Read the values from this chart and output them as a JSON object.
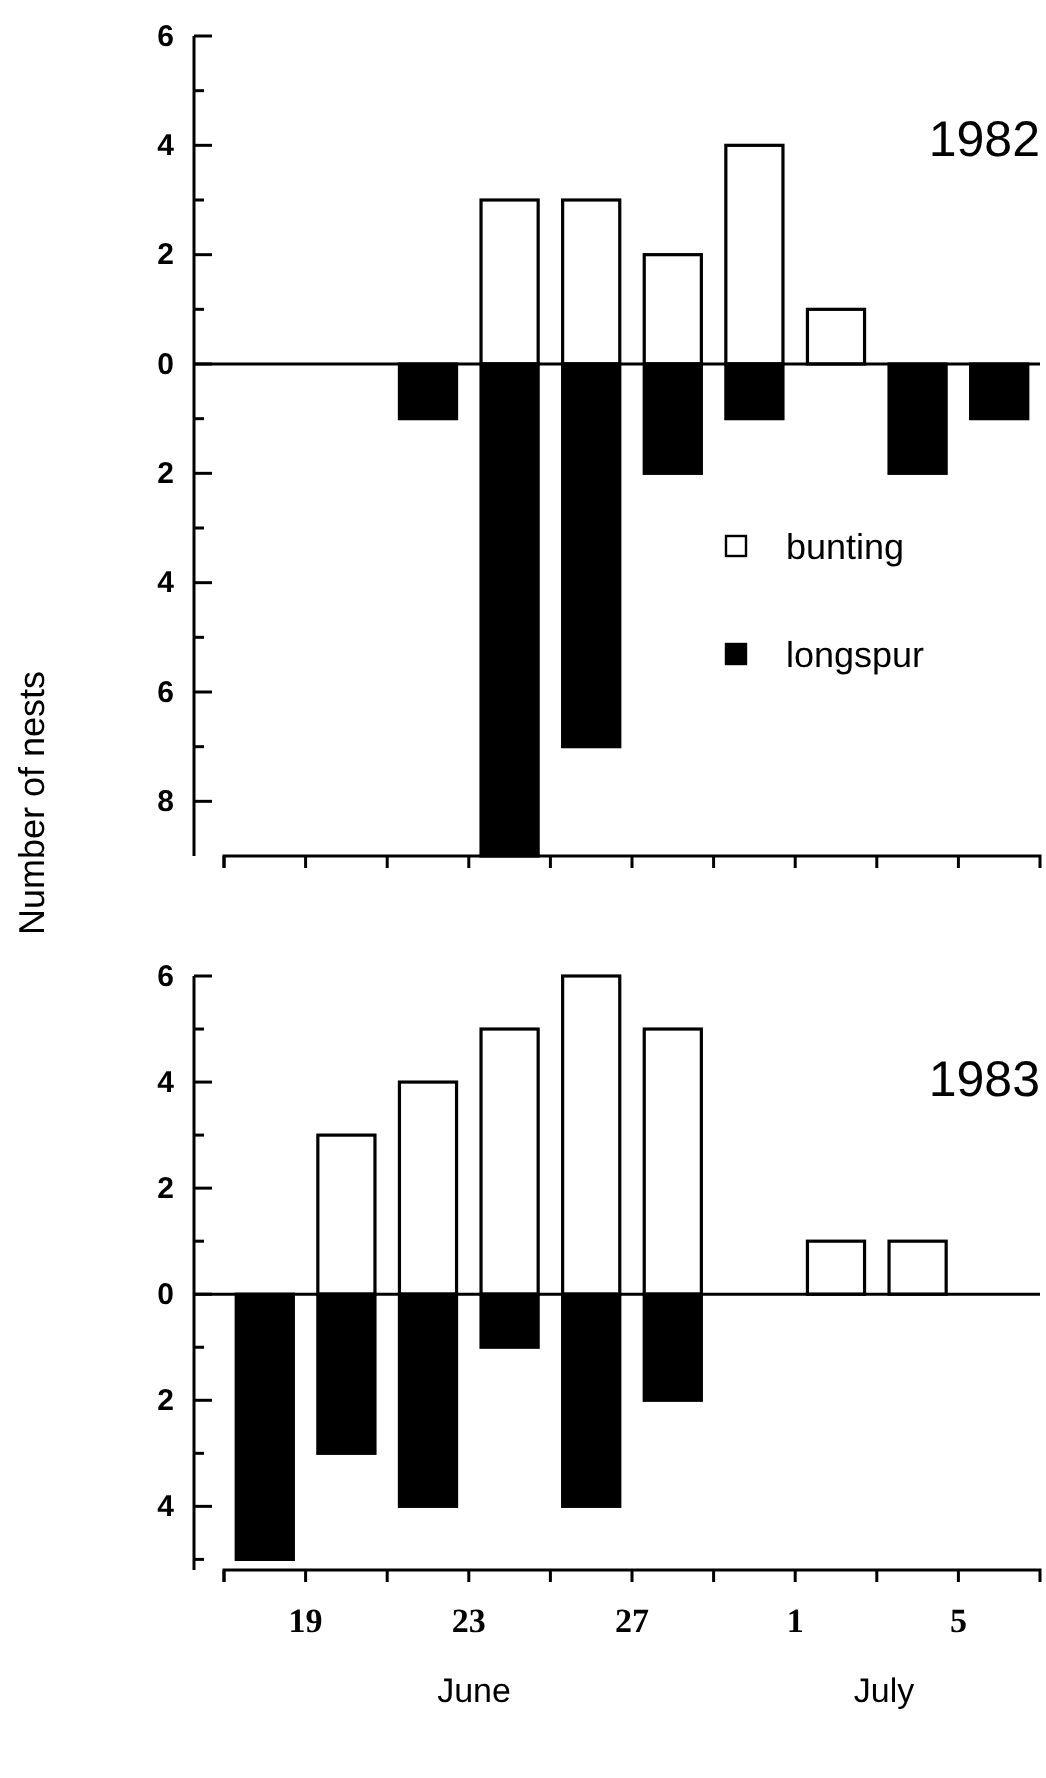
{
  "chart_data": [
    {
      "type": "bar",
      "title": "1982",
      "ylabel": "Number of nests",
      "legend": "right",
      "tick_labels": "y",
      "stacked": true,
      "x": [
        "--06-22",
        "--06-24",
        "--06-26",
        "--06-28",
        "--06-30",
        "--07-02",
        "--07-04",
        "--07-06"
      ],
      "series": [
        {
          "name": "bunting",
          "color": "#ffffff",
          "values": [
            null,
            3,
            3,
            2,
            4,
            1,
            null,
            null
          ]
        },
        {
          "name": "longspur",
          "color": "#000000",
          "values": [
            -1,
            -9,
            -7,
            -2,
            -1,
            null,
            -2,
            -1
          ]
        }
      ],
      "xlim": [
        "--06-17",
        "--07-07"
      ],
      "xticks": [
        {
          "value": "--06-17",
          "label": null
        },
        {
          "value": "--06-19",
          "label": null
        },
        {
          "value": "--06-21",
          "label": null
        },
        {
          "value": "--06-23",
          "label": null
        },
        {
          "value": "--06-25",
          "label": null
        },
        {
          "value": "--06-27",
          "label": null
        },
        {
          "value": "--06-29",
          "label": null
        },
        {
          "value": "--07-01",
          "label": null
        },
        {
          "value": "--07-03",
          "label": null
        },
        {
          "value": "--07-05",
          "label": null
        }
      ],
      "ylim": [
        -9,
        6
      ],
      "yticks": [
        6,
        {
          "value": 5,
          "label": null
        },
        4,
        {
          "value": 3,
          "label": null
        },
        2,
        {
          "value": 1,
          "label": null
        },
        0,
        {
          "value": -1,
          "label": null
        },
        {
          "value": -2,
          "label": "2"
        },
        {
          "value": -3,
          "label": null
        },
        {
          "value": -4,
          "label": "4"
        },
        {
          "value": -5,
          "label": null
        },
        {
          "value": -6,
          "label": "6"
        },
        {
          "value": -7,
          "label": null
        },
        {
          "value": -8,
          "label": "8"
        }
      ]
    },
    {
      "type": "bar",
      "title": "1983",
      "annotations": [
        "June",
        "July"
      ],
      "stacked": true,
      "x": [
        "--06-18",
        "--06-20",
        "--06-22",
        "--06-24",
        "--06-26",
        "--06-28",
        "--06-30",
        "--07-02",
        "--07-04"
      ],
      "series": [
        {
          "color": "#ffffff",
          "values": [
            null,
            3,
            4,
            5,
            6,
            5,
            null,
            1,
            1
          ]
        },
        {
          "color": "#000000",
          "values": [
            -5,
            -3,
            -4,
            -1,
            -4,
            -2,
            null,
            null,
            null
          ]
        }
      ],
      "xlim": [
        "--06-17",
        "--07-07"
      ],
      "xticks": [
        {
          "value": "--06-17",
          "label": null
        },
        {
          "value": "--06-19",
          "label": "19"
        },
        {
          "value": "--06-21",
          "label": null
        },
        {
          "value": "--06-23",
          "label": "23"
        },
        {
          "value": "--06-25",
          "label": null
        },
        {
          "value": "--06-27",
          "label": "27"
        },
        {
          "value": "--06-29",
          "label": null
        },
        {
          "value": "--07-01",
          "label": "1"
        },
        {
          "value": "--07-03",
          "label": null
        },
        {
          "value": "--07-05",
          "label": "5"
        }
      ],
      "ylim": [
        -5.2,
        6
      ],
      "yticks": [
        6,
        {
          "value": 5,
          "label": null
        },
        4,
        {
          "value": 3,
          "label": null
        },
        2,
        {
          "value": 1,
          "label": null
        },
        0,
        {
          "value": -1,
          "label": null
        },
        {
          "value": -2,
          "label": "2"
        },
        {
          "value": -3,
          "label": null
        },
        {
          "value": -4,
          "label": "4"
        },
        {
          "value": -5,
          "label": null
        }
      ]
    }
  ]
}
